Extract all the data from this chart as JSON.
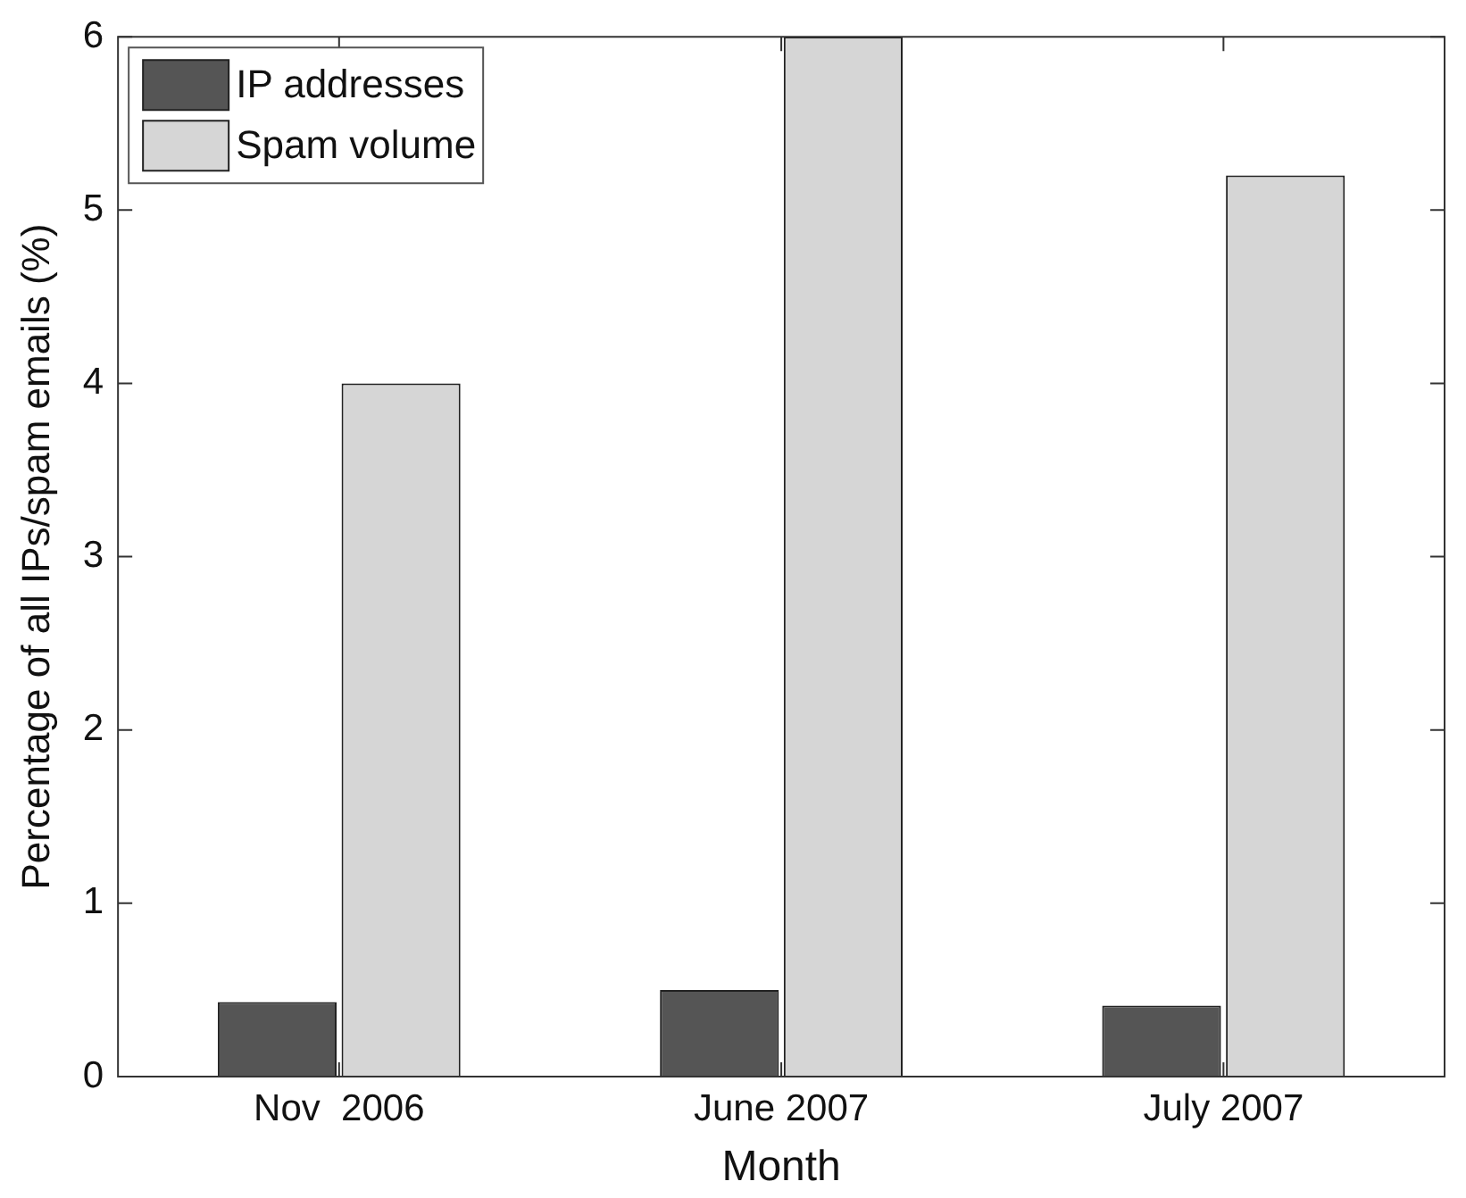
{
  "chart_data": {
    "type": "bar",
    "xlabel": "Month",
    "ylabel": "Percentage of all IPs/spam emails (%)",
    "categories": [
      "Nov  2006",
      "June 2007",
      "July 2007"
    ],
    "series": [
      {
        "name": "IP addresses",
        "color": "#555555",
        "values": [
          0.43,
          0.5,
          0.41
        ]
      },
      {
        "name": "Spam volume",
        "color": "#d6d6d6",
        "values": [
          4.0,
          6.0,
          5.2
        ]
      }
    ],
    "ylim": [
      0,
      6
    ],
    "yticks": [
      0,
      1,
      2,
      3,
      4,
      5,
      6
    ],
    "grid": false,
    "legend": "top left"
  }
}
